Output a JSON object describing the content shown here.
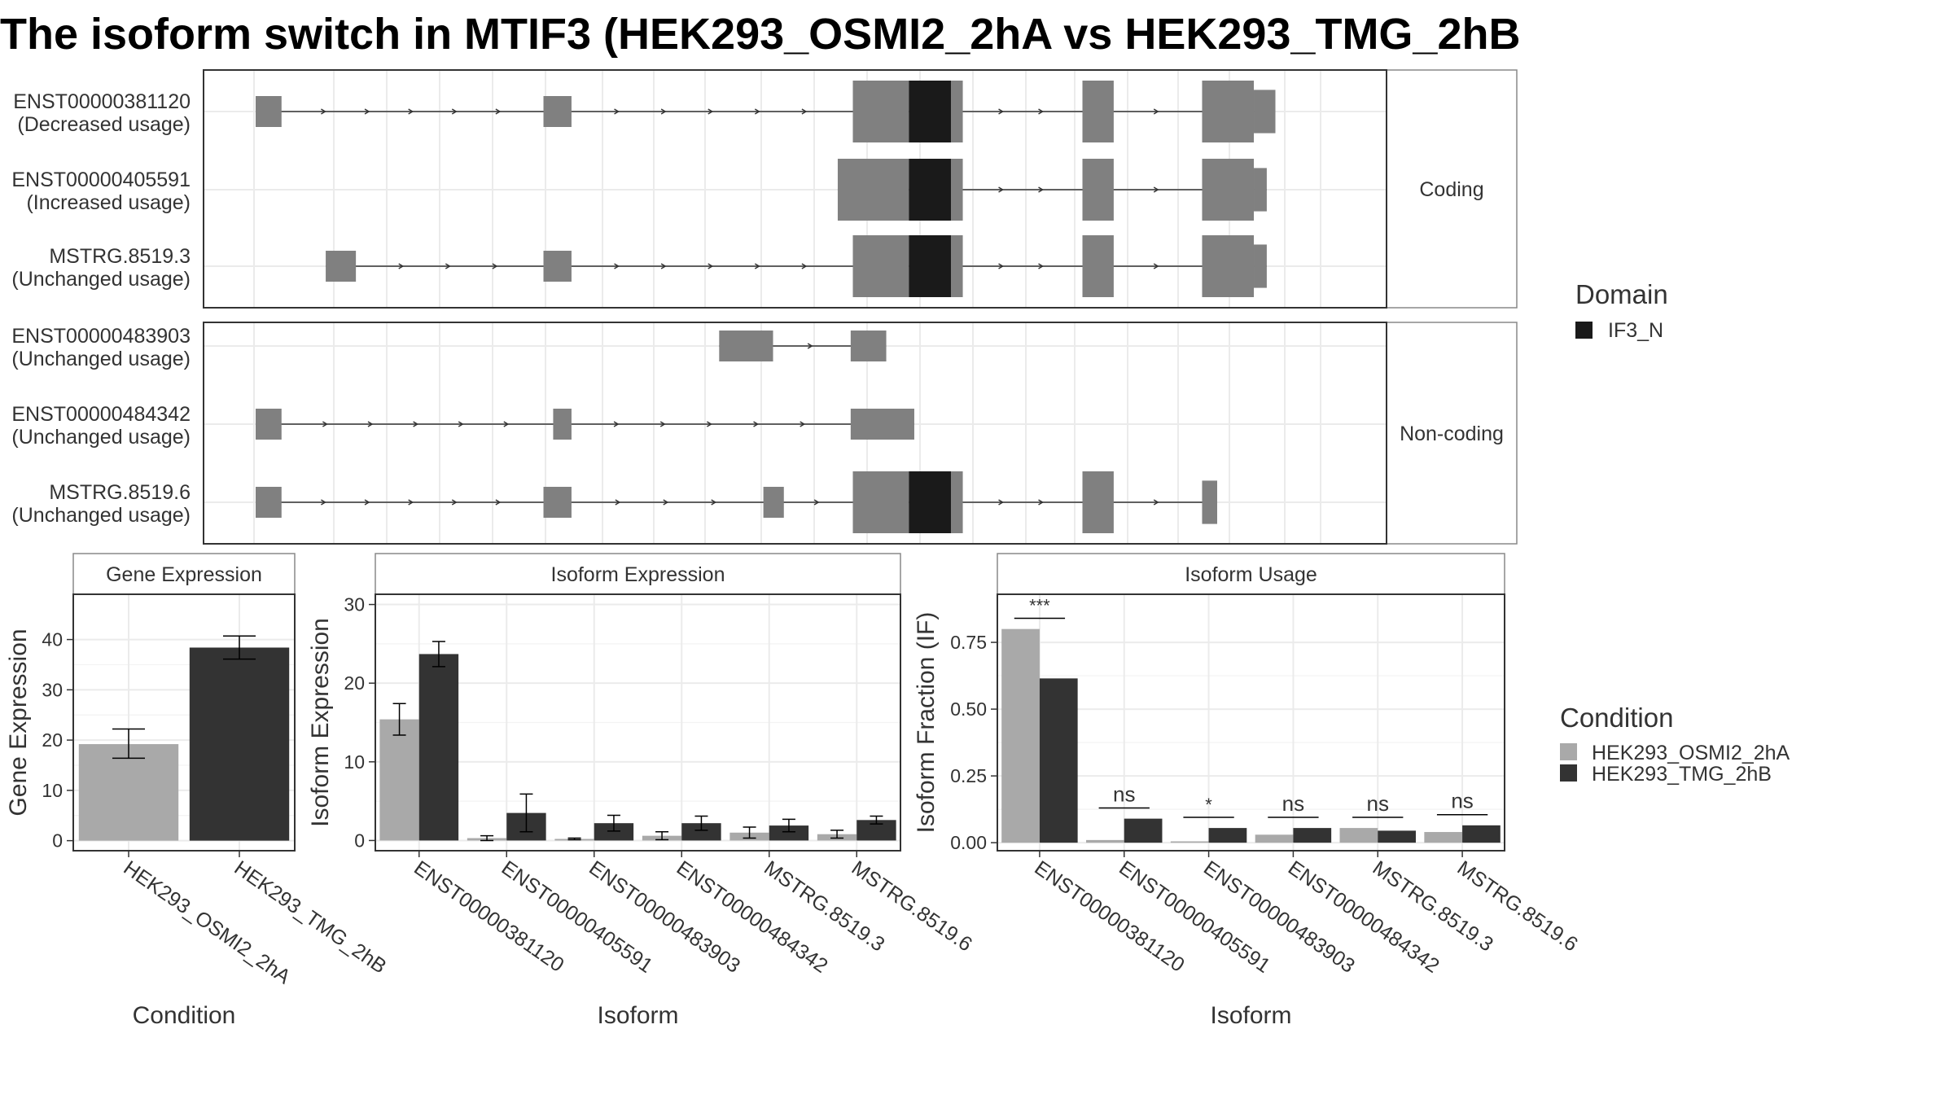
{
  "title": "The isoform switch in MTIF3 (HEK293_OSMI2_2hA vs HEK293_TMG_2hB",
  "colors": {
    "condition1": "#a9a9a9",
    "condition2": "#333333",
    "exon": "#808080",
    "domain": "#1a1a1a"
  },
  "chart_data": [
    {
      "id": "structure",
      "type": "diagram",
      "facets": [
        {
          "label": "Coding",
          "isoforms": [
            {
              "label1": "ENST00000381120",
              "label2": "(Decreased usage)",
              "exons": [
                [
                  0.0,
                  0.024,
                  0.5
                ],
                [
                  0.267,
                  0.293,
                  0.5
                ],
                [
                  0.554,
                  0.606,
                  1.0
                ],
                [
                  0.606,
                  0.645,
                  1.0
                ],
                [
                  0.645,
                  0.656,
                  1.0
                ],
                [
                  0.767,
                  0.796,
                  1.0
                ],
                [
                  0.878,
                  0.926,
                  1.0
                ],
                [
                  0.926,
                  0.946,
                  0.7
                ]
              ],
              "domains": [
                [
                  0.606,
                  0.645
                ]
              ]
            },
            {
              "label1": "ENST00000405591",
              "label2": "(Increased usage)",
              "exons": [
                [
                  0.54,
                  0.606,
                  1.0
                ],
                [
                  0.606,
                  0.645,
                  1.0
                ],
                [
                  0.645,
                  0.656,
                  1.0
                ],
                [
                  0.767,
                  0.796,
                  1.0
                ],
                [
                  0.878,
                  0.926,
                  1.0
                ],
                [
                  0.926,
                  0.938,
                  0.7
                ]
              ],
              "domains": [
                [
                  0.606,
                  0.645
                ]
              ]
            },
            {
              "label1": "MSTRG.8519.3",
              "label2": "(Unchanged usage)",
              "exons": [
                [
                  0.065,
                  0.093,
                  0.5
                ],
                [
                  0.267,
                  0.293,
                  0.5
                ],
                [
                  0.554,
                  0.606,
                  1.0
                ],
                [
                  0.606,
                  0.645,
                  1.0
                ],
                [
                  0.645,
                  0.656,
                  1.0
                ],
                [
                  0.767,
                  0.796,
                  1.0
                ],
                [
                  0.878,
                  0.926,
                  1.0
                ],
                [
                  0.926,
                  0.938,
                  0.7
                ]
              ],
              "domains": [
                [
                  0.606,
                  0.645
                ]
              ]
            }
          ]
        },
        {
          "label": "Non-coding",
          "isoforms": [
            {
              "label1": "ENST00000483903",
              "label2": "(Unchanged usage)",
              "exons": [
                [
                  0.43,
                  0.48,
                  0.5
                ],
                [
                  0.552,
                  0.585,
                  0.5
                ]
              ],
              "domains": []
            },
            {
              "label1": "ENST00000484342",
              "label2": "(Unchanged usage)",
              "exons": [
                [
                  0.0,
                  0.024,
                  0.5
                ],
                [
                  0.276,
                  0.293,
                  0.5
                ],
                [
                  0.552,
                  0.611,
                  0.5
                ]
              ],
              "domains": []
            },
            {
              "label1": "MSTRG.8519.6",
              "label2": "(Unchanged usage)",
              "exons": [
                [
                  0.0,
                  0.024,
                  0.5
                ],
                [
                  0.267,
                  0.293,
                  0.5
                ],
                [
                  0.471,
                  0.49,
                  0.5
                ],
                [
                  0.554,
                  0.606,
                  1.0
                ],
                [
                  0.606,
                  0.645,
                  1.0
                ],
                [
                  0.645,
                  0.656,
                  1.0
                ],
                [
                  0.767,
                  0.796,
                  1.0
                ],
                [
                  0.878,
                  0.892,
                  0.7
                ]
              ],
              "domains": [
                [
                  0.606,
                  0.645
                ]
              ]
            }
          ]
        }
      ],
      "domain_legend": {
        "title": "Domain",
        "items": [
          {
            "name": "IF3_N"
          }
        ]
      }
    },
    {
      "id": "gene-expression",
      "type": "bar",
      "strip": "Gene Expression",
      "ylabel": "Gene Expression",
      "xlabel": "Condition",
      "ylim": [
        -2,
        49
      ],
      "yticks": [
        0,
        10,
        20,
        30,
        40
      ],
      "categories": [
        "HEK293_OSMI2_2hA",
        "HEK293_TMG_2hB"
      ],
      "values": [
        19.2,
        38.4
      ],
      "errors": [
        [
          16.4,
          22.2
        ],
        [
          36.1,
          40.7
        ]
      ]
    },
    {
      "id": "isoform-expression",
      "type": "bar",
      "strip": "Isoform Expression",
      "ylabel": "Isoform Expression",
      "xlabel": "Isoform",
      "ylim": [
        -1.3,
        31.3
      ],
      "yticks": [
        0,
        10,
        20,
        30
      ],
      "categories": [
        "ENST00000381120",
        "ENST00000405591",
        "ENST00000483903",
        "ENST00000484342",
        "MSTRG.8519.3",
        "MSTRG.8519.6"
      ],
      "series": [
        {
          "name": "HEK293_OSMI2_2hA",
          "values": [
            15.4,
            0.3,
            0.2,
            0.6,
            1.0,
            0.8
          ],
          "errors": [
            [
              13.4,
              17.4
            ],
            [
              0.0,
              0.6
            ],
            [
              0.1,
              0.3
            ],
            [
              0.1,
              1.1
            ],
            [
              0.3,
              1.7
            ],
            [
              0.3,
              1.3
            ]
          ]
        },
        {
          "name": "HEK293_TMG_2hB",
          "values": [
            23.7,
            3.5,
            2.2,
            2.2,
            1.9,
            2.6
          ],
          "errors": [
            [
              22.1,
              25.3
            ],
            [
              1.1,
              5.9
            ],
            [
              1.2,
              3.2
            ],
            [
              1.3,
              3.1
            ],
            [
              1.1,
              2.7
            ],
            [
              2.1,
              3.1
            ]
          ]
        }
      ]
    },
    {
      "id": "isoform-usage",
      "type": "bar",
      "strip": "Isoform Usage",
      "ylabel": "Isoform Fraction (IF)",
      "xlabel": "Isoform",
      "ylim": [
        -0.03,
        0.93
      ],
      "yticks": [
        0.0,
        0.25,
        0.5,
        0.75
      ],
      "ytick_labels": [
        "0.00",
        "0.25",
        "0.50",
        "0.75"
      ],
      "categories": [
        "ENST00000381120",
        "ENST00000405591",
        "ENST00000483903",
        "ENST00000484342",
        "MSTRG.8519.3",
        "MSTRG.8519.6"
      ],
      "series": [
        {
          "name": "HEK293_OSMI2_2hA",
          "values": [
            0.8,
            0.01,
            0.005,
            0.03,
            0.055,
            0.04
          ]
        },
        {
          "name": "HEK293_TMG_2hB",
          "values": [
            0.615,
            0.09,
            0.055,
            0.055,
            0.045,
            0.065
          ]
        }
      ],
      "significance": [
        {
          "label": "***",
          "y": 0.84
        },
        {
          "label": "ns",
          "y": 0.13
        },
        {
          "label": "*",
          "y": 0.095
        },
        {
          "label": "ns",
          "y": 0.095
        },
        {
          "label": "ns",
          "y": 0.095
        },
        {
          "label": "ns",
          "y": 0.105
        }
      ]
    }
  ],
  "condition_legend": {
    "title": "Condition",
    "items": [
      {
        "name": "HEK293_OSMI2_2hA"
      },
      {
        "name": "HEK293_TMG_2hB"
      }
    ]
  }
}
